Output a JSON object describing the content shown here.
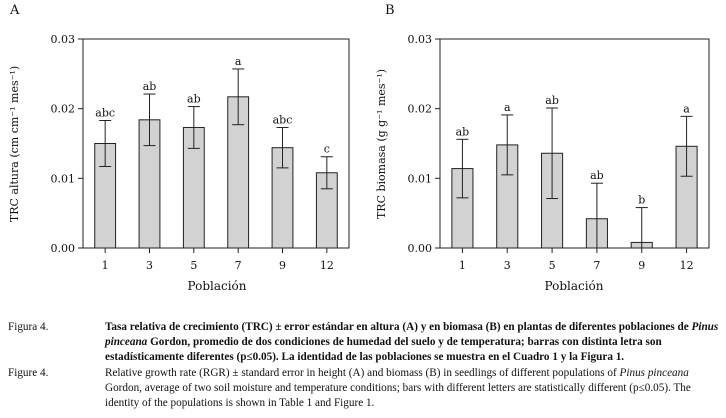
{
  "chart_data": [
    {
      "type": "bar",
      "panel_label": "A",
      "ylabel": "TRC altura (cm cm⁻¹ mes⁻¹)",
      "xlabel": "Población",
      "categories": [
        "1",
        "3",
        "5",
        "7",
        "9",
        "12"
      ],
      "values": [
        0.015,
        0.0184,
        0.0173,
        0.0217,
        0.0144,
        0.0108
      ],
      "errors": [
        0.0033,
        0.0037,
        0.003,
        0.004,
        0.0029,
        0.0023
      ],
      "letters": [
        "abc",
        "ab",
        "ab",
        "a",
        "abc",
        "c"
      ],
      "ylim": [
        0,
        0.03
      ],
      "yticks": [
        "0.00",
        "0.01",
        "0.02",
        "0.03"
      ]
    },
    {
      "type": "bar",
      "panel_label": "B",
      "ylabel": "TRC biomasa (g g⁻¹ mes⁻¹)",
      "xlabel": "Población",
      "categories": [
        "1",
        "3",
        "5",
        "7",
        "9",
        "12"
      ],
      "values": [
        0.0114,
        0.0148,
        0.0136,
        0.0042,
        0.0008,
        0.0146
      ],
      "errors": [
        0.0042,
        0.0043,
        0.0065,
        0.0051,
        0.005,
        0.0043
      ],
      "letters": [
        "ab",
        "a",
        "ab",
        "ab",
        "b",
        "a"
      ],
      "ylim": [
        0,
        0.03
      ],
      "yticks": [
        "0.00",
        "0.01",
        "0.02",
        "0.03"
      ]
    }
  ],
  "caption": {
    "es_label": "Figura 4.",
    "es_text_1": "Tasa relativa de crecimiento (TRC) ± error estándar en altura (A) y en biomasa (B) en plantas de diferentes poblaciones de ",
    "es_species": "Pinus pinceana",
    "es_text_2": " Gordon, promedio de dos condiciones de humedad del suelo y de temperatura; barras con distinta letra son estadísticamente diferentes (p≤0.05). La identidad de las poblaciones se muestra en el Cuadro 1 y la Figura 1.",
    "en_label": "Figure 4.",
    "en_text_1": "Relative growth rate (RGR) ± standard error in height (A) and biomass (B) in seedlings of different populations of ",
    "en_species": "Pinus pinceana",
    "en_text_2": " Gordon, average of two soil moisture and temperature conditions; bars with different letters are statistically different (p≤0.05). The identity of the populations is shown in Table 1 and Figure 1."
  }
}
